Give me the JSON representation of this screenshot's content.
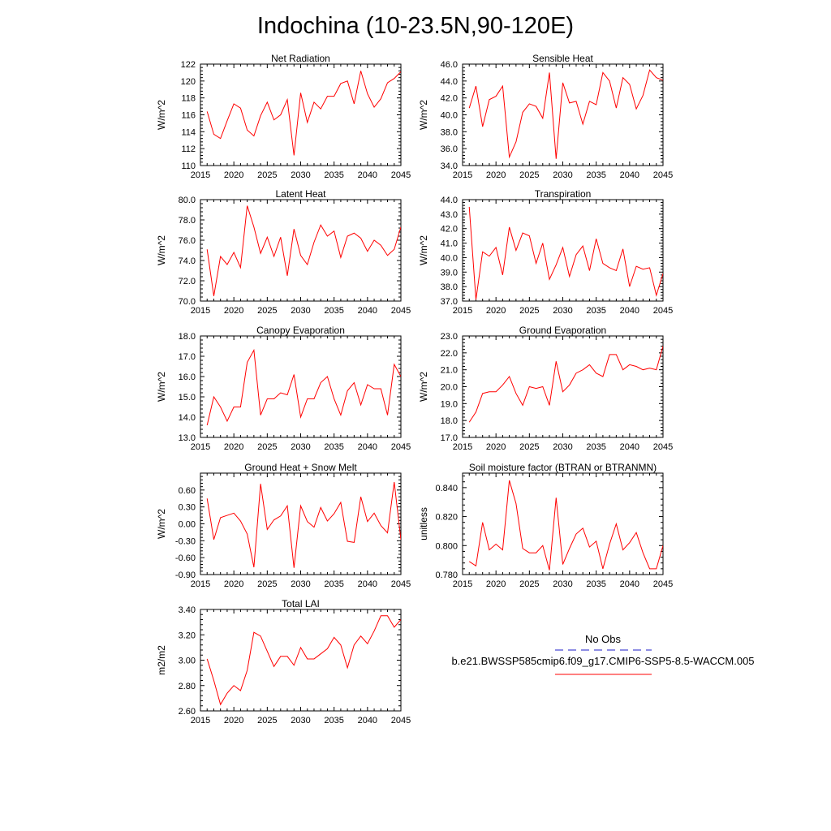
{
  "figure": {
    "title": "Indochina (10-23.5N,90-120E)"
  },
  "colors": {
    "series": "#ff0000",
    "obs": "#1c1cc8",
    "axis": "#000000"
  },
  "chart_data": [
    {
      "type": "line",
      "title": "Net Radiation",
      "ylabel": "W/m^2",
      "xlim": [
        2015,
        2045
      ],
      "xticks": [
        2015,
        2020,
        2025,
        2030,
        2035,
        2040,
        2045
      ],
      "ylim": [
        110,
        122
      ],
      "yticks": [
        110,
        112,
        114,
        116,
        118,
        120,
        122
      ],
      "ydecimals": 0,
      "x": [
        2016,
        2017,
        2018,
        2019,
        2020,
        2021,
        2022,
        2023,
        2024,
        2025,
        2026,
        2027,
        2028,
        2029,
        2030,
        2031,
        2032,
        2033,
        2034,
        2035,
        2036,
        2037,
        2038,
        2039,
        2040,
        2041,
        2042,
        2043,
        2044,
        2045
      ],
      "series": [
        {
          "name": "b.e21.BWSSP585cmip6.f09_g17.CMIP6-SSP5-8.5-WACCM.005",
          "values": [
            116.4,
            113.7,
            113.2,
            115.3,
            117.3,
            116.8,
            114.2,
            113.5,
            115.9,
            117.5,
            115.4,
            116.0,
            117.8,
            111.2,
            118.6,
            115.1,
            117.5,
            116.7,
            118.2,
            118.2,
            119.7,
            120.0,
            117.3,
            121.2,
            118.5,
            116.9,
            117.9,
            119.8,
            120.3,
            121.1
          ]
        }
      ]
    },
    {
      "type": "line",
      "title": "Sensible Heat",
      "ylabel": "W/m^2",
      "xlim": [
        2015,
        2045
      ],
      "xticks": [
        2015,
        2020,
        2025,
        2030,
        2035,
        2040,
        2045
      ],
      "ylim": [
        34,
        46
      ],
      "yticks": [
        34,
        36,
        38,
        40,
        42,
        44,
        46
      ],
      "ydecimals": 1,
      "x": [
        2016,
        2017,
        2018,
        2019,
        2020,
        2021,
        2022,
        2023,
        2024,
        2025,
        2026,
        2027,
        2028,
        2029,
        2030,
        2031,
        2032,
        2033,
        2034,
        2035,
        2036,
        2037,
        2038,
        2039,
        2040,
        2041,
        2042,
        2043,
        2044,
        2045
      ],
      "series": [
        {
          "name": "b.e21.BWSSP585cmip6.f09_g17.CMIP6-SSP5-8.5-WACCM.005",
          "values": [
            40.8,
            43.4,
            38.6,
            41.8,
            42.2,
            43.4,
            35.0,
            36.8,
            40.3,
            41.3,
            41.0,
            39.6,
            45.0,
            34.8,
            43.8,
            41.4,
            41.6,
            38.9,
            41.6,
            41.2,
            45.0,
            44.0,
            40.8,
            44.4,
            43.6,
            40.7,
            42.3,
            45.3,
            44.4,
            44.1
          ]
        }
      ]
    },
    {
      "type": "line",
      "title": "Latent Heat",
      "ylabel": "W/m^2",
      "xlim": [
        2015,
        2045
      ],
      "xticks": [
        2015,
        2020,
        2025,
        2030,
        2035,
        2040,
        2045
      ],
      "ylim": [
        70,
        80
      ],
      "yticks": [
        70,
        72,
        74,
        76,
        78,
        80
      ],
      "ydecimals": 1,
      "x": [
        2016,
        2017,
        2018,
        2019,
        2020,
        2021,
        2022,
        2023,
        2024,
        2025,
        2026,
        2027,
        2028,
        2029,
        2030,
        2031,
        2032,
        2033,
        2034,
        2035,
        2036,
        2037,
        2038,
        2039,
        2040,
        2041,
        2042,
        2043,
        2044,
        2045
      ],
      "series": [
        {
          "name": "b.e21.BWSSP585cmip6.f09_g17.CMIP6-SSP5-8.5-WACCM.005",
          "values": [
            75.1,
            70.5,
            74.4,
            73.6,
            74.8,
            73.3,
            79.4,
            77.3,
            74.7,
            76.3,
            74.4,
            76.3,
            72.5,
            77.1,
            74.5,
            73.6,
            75.8,
            77.5,
            76.4,
            76.9,
            74.3,
            76.4,
            76.7,
            76.2,
            74.9,
            76.0,
            75.5,
            74.5,
            75.1,
            77.3
          ]
        }
      ]
    },
    {
      "type": "line",
      "title": "Transpiration",
      "ylabel": "W/m^2",
      "xlim": [
        2015,
        2045
      ],
      "xticks": [
        2015,
        2020,
        2025,
        2030,
        2035,
        2040,
        2045
      ],
      "ylim": [
        37,
        44
      ],
      "yticks": [
        37,
        38,
        39,
        40,
        41,
        42,
        43,
        44
      ],
      "ydecimals": 1,
      "x": [
        2016,
        2017,
        2018,
        2019,
        2020,
        2021,
        2022,
        2023,
        2024,
        2025,
        2026,
        2027,
        2028,
        2029,
        2030,
        2031,
        2032,
        2033,
        2034,
        2035,
        2036,
        2037,
        2038,
        2039,
        2040,
        2041,
        2042,
        2043,
        2044,
        2045
      ],
      "series": [
        {
          "name": "b.e21.BWSSP585cmip6.f09_g17.CMIP6-SSP5-8.5-WACCM.005",
          "values": [
            43.5,
            37.1,
            40.4,
            40.1,
            40.7,
            38.8,
            42.1,
            40.5,
            41.7,
            41.5,
            39.6,
            41.0,
            38.5,
            39.5,
            40.7,
            38.7,
            40.2,
            40.8,
            39.1,
            41.3,
            39.6,
            39.3,
            39.1,
            40.6,
            38.0,
            39.4,
            39.2,
            39.3,
            37.4,
            38.9
          ]
        }
      ]
    },
    {
      "type": "line",
      "title": "Canopy Evaporation",
      "ylabel": "W/m^2",
      "xlim": [
        2015,
        2045
      ],
      "xticks": [
        2015,
        2020,
        2025,
        2030,
        2035,
        2040,
        2045
      ],
      "ylim": [
        13,
        18
      ],
      "yticks": [
        13,
        14,
        15,
        16,
        17,
        18
      ],
      "ydecimals": 1,
      "x": [
        2016,
        2017,
        2018,
        2019,
        2020,
        2021,
        2022,
        2023,
        2024,
        2025,
        2026,
        2027,
        2028,
        2029,
        2030,
        2031,
        2032,
        2033,
        2034,
        2035,
        2036,
        2037,
        2038,
        2039,
        2040,
        2041,
        2042,
        2043,
        2044,
        2045
      ],
      "series": [
        {
          "name": "b.e21.BWSSP585cmip6.f09_g17.CMIP6-SSP5-8.5-WACCM.005",
          "values": [
            13.6,
            15.0,
            14.5,
            13.8,
            14.5,
            14.5,
            16.7,
            17.3,
            14.1,
            14.9,
            14.9,
            15.2,
            15.1,
            16.1,
            14.0,
            14.9,
            14.9,
            15.7,
            16.0,
            14.9,
            14.1,
            15.3,
            15.7,
            14.6,
            15.6,
            15.4,
            15.4,
            14.1,
            16.6,
            16.0
          ]
        }
      ]
    },
    {
      "type": "line",
      "title": "Ground Evaporation",
      "ylabel": "W/m^2",
      "xlim": [
        2015,
        2045
      ],
      "xticks": [
        2015,
        2020,
        2025,
        2030,
        2035,
        2040,
        2045
      ],
      "ylim": [
        17,
        23
      ],
      "yticks": [
        17,
        18,
        19,
        20,
        21,
        22,
        23
      ],
      "ydecimals": 1,
      "x": [
        2016,
        2017,
        2018,
        2019,
        2020,
        2021,
        2022,
        2023,
        2024,
        2025,
        2026,
        2027,
        2028,
        2029,
        2030,
        2031,
        2032,
        2033,
        2034,
        2035,
        2036,
        2037,
        2038,
        2039,
        2040,
        2041,
        2042,
        2043,
        2044,
        2045
      ],
      "series": [
        {
          "name": "b.e21.BWSSP585cmip6.f09_g17.CMIP6-SSP5-8.5-WACCM.005",
          "values": [
            17.9,
            18.5,
            19.6,
            19.7,
            19.7,
            20.1,
            20.6,
            19.6,
            18.9,
            20.0,
            19.9,
            20.0,
            18.9,
            21.5,
            19.7,
            20.1,
            20.8,
            21.0,
            21.3,
            20.8,
            20.6,
            21.9,
            21.9,
            21.0,
            21.3,
            21.2,
            21.0,
            21.1,
            21.0,
            22.4
          ]
        }
      ]
    },
    {
      "type": "line",
      "title": "Ground Heat + Snow Melt",
      "ylabel": "W/m^2",
      "xlim": [
        2015,
        2045
      ],
      "xticks": [
        2015,
        2020,
        2025,
        2030,
        2035,
        2040,
        2045
      ],
      "ylim": [
        -0.9,
        0.9
      ],
      "yticks": [
        -0.9,
        -0.6,
        -0.3,
        0.0,
        0.3,
        0.6
      ],
      "ydecimals": 2,
      "x": [
        2016,
        2017,
        2018,
        2019,
        2020,
        2021,
        2022,
        2023,
        2024,
        2025,
        2026,
        2027,
        2028,
        2029,
        2030,
        2031,
        2032,
        2033,
        2034,
        2035,
        2036,
        2037,
        2038,
        2039,
        2040,
        2041,
        2042,
        2043,
        2044,
        2045
      ],
      "series": [
        {
          "name": "b.e21.BWSSP585cmip6.f09_g17.CMIP6-SSP5-8.5-WACCM.005",
          "values": [
            0.45,
            -0.28,
            0.11,
            0.15,
            0.19,
            0.05,
            -0.18,
            -0.77,
            0.71,
            -0.1,
            0.07,
            0.14,
            0.32,
            -0.78,
            0.32,
            0.04,
            -0.06,
            0.29,
            0.05,
            0.18,
            0.38,
            -0.31,
            -0.33,
            0.48,
            0.04,
            0.19,
            -0.03,
            -0.16,
            0.74,
            -0.28
          ]
        }
      ]
    },
    {
      "type": "line",
      "title": "Soil moisture factor (BTRAN or BTRANMN)",
      "ylabel": "unitless",
      "xlim": [
        2015,
        2045
      ],
      "xticks": [
        2015,
        2020,
        2025,
        2030,
        2035,
        2040,
        2045
      ],
      "ylim": [
        0.78,
        0.85
      ],
      "yticks": [
        0.78,
        0.8,
        0.82,
        0.84
      ],
      "ydecimals": 3,
      "x": [
        2016,
        2017,
        2018,
        2019,
        2020,
        2021,
        2022,
        2023,
        2024,
        2025,
        2026,
        2027,
        2028,
        2029,
        2030,
        2031,
        2032,
        2033,
        2034,
        2035,
        2036,
        2037,
        2038,
        2039,
        2040,
        2041,
        2042,
        2043,
        2044,
        2045
      ],
      "series": [
        {
          "name": "b.e21.BWSSP585cmip6.f09_g17.CMIP6-SSP5-8.5-WACCM.005",
          "values": [
            0.789,
            0.786,
            0.816,
            0.797,
            0.801,
            0.797,
            0.845,
            0.829,
            0.798,
            0.795,
            0.795,
            0.8,
            0.783,
            0.833,
            0.787,
            0.798,
            0.808,
            0.812,
            0.799,
            0.803,
            0.784,
            0.801,
            0.815,
            0.797,
            0.802,
            0.809,
            0.795,
            0.784,
            0.784,
            0.8
          ]
        }
      ]
    },
    {
      "type": "line",
      "title": "Total LAI",
      "ylabel": "m2/m2",
      "xlim": [
        2015,
        2045
      ],
      "xticks": [
        2015,
        2020,
        2025,
        2030,
        2035,
        2040,
        2045
      ],
      "ylim": [
        2.6,
        3.4
      ],
      "yticks": [
        2.6,
        2.8,
        3.0,
        3.2,
        3.4
      ],
      "ydecimals": 2,
      "x": [
        2016,
        2017,
        2018,
        2019,
        2020,
        2021,
        2022,
        2023,
        2024,
        2025,
        2026,
        2027,
        2028,
        2029,
        2030,
        2031,
        2032,
        2033,
        2034,
        2035,
        2036,
        2037,
        2038,
        2039,
        2040,
        2041,
        2042,
        2043,
        2044,
        2045
      ],
      "series": [
        {
          "name": "b.e21.BWSSP585cmip6.f09_g17.CMIP6-SSP5-8.5-WACCM.005",
          "values": [
            3.01,
            2.84,
            2.65,
            2.74,
            2.8,
            2.76,
            2.92,
            3.22,
            3.19,
            3.07,
            2.95,
            3.03,
            3.03,
            2.96,
            3.1,
            3.01,
            3.01,
            3.05,
            3.09,
            3.18,
            3.12,
            2.94,
            3.12,
            3.19,
            3.13,
            3.23,
            3.35,
            3.35,
            3.26,
            3.32
          ]
        }
      ]
    }
  ],
  "legend": {
    "entries": [
      {
        "label": "No Obs",
        "style": "dashed",
        "color": "#1c1cc8"
      },
      {
        "label": "b.e21.BWSSP585cmip6.f09_g17.CMIP6-SSP5-8.5-WACCM.005",
        "style": "solid",
        "color": "#ff0000"
      }
    ]
  }
}
